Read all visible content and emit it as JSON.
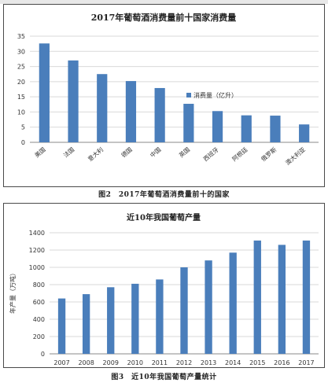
{
  "chart_data": [
    {
      "type": "bar",
      "title": "2017年葡萄酒消费量前十国家消费量",
      "categories": [
        "美国",
        "法国",
        "意大利",
        "德国",
        "中国",
        "英国",
        "西班牙",
        "阿根廷",
        "俄罗斯",
        "澳大利亚"
      ],
      "series": [
        {
          "name": "消费量（亿升）",
          "values": [
            32.6,
            27,
            22.5,
            20.2,
            17.9,
            12.7,
            10.3,
            8.9,
            8.8,
            5.9
          ]
        }
      ],
      "yticks": [
        0,
        5,
        10,
        15,
        20,
        25,
        30,
        35
      ],
      "ylim": [
        0,
        35
      ],
      "grid": true,
      "legend": "right",
      "color": "#4a7ebb"
    },
    {
      "type": "bar",
      "title": "近10年我国葡萄产量",
      "ylabel": "年产量（万吨）",
      "categories": [
        "2007",
        "2008",
        "2009",
        "2010",
        "2011",
        "2012",
        "2013",
        "2014",
        "2015",
        "2016",
        "2017"
      ],
      "series": [
        {
          "values": [
            640,
            690,
            770,
            810,
            860,
            1000,
            1080,
            1170,
            1310,
            1260,
            1310
          ]
        }
      ],
      "yticks": [
        0,
        200,
        400,
        600,
        800,
        1000,
        1200,
        1400
      ],
      "ylim": [
        0,
        1400
      ],
      "grid": true,
      "color": "#4a7ebb"
    }
  ],
  "captions": {
    "fig2": "图2　2017年葡萄酒消费量前十的国家",
    "fig3": "图3　近10年我国葡萄产量统计"
  }
}
